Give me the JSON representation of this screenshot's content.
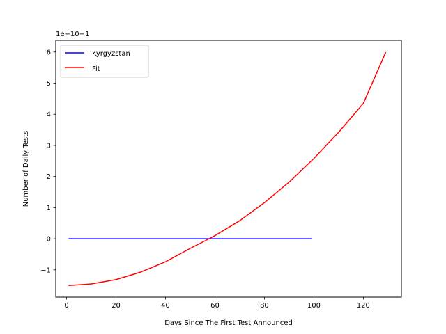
{
  "chart_data": {
    "type": "line",
    "title": "",
    "xlabel": "Days Since The First Test Announced",
    "ylabel": "Number of Daily Tests",
    "offset_label": "1e−10−1",
    "xlim": [
      -4.4,
      135.4
    ],
    "ylim": [
      -1.875,
      6.375
    ],
    "x_ticks": [
      0,
      20,
      40,
      60,
      80,
      100,
      120
    ],
    "x_tick_labels": [
      "0",
      "20",
      "40",
      "60",
      "80",
      "100",
      "120"
    ],
    "y_ticks": [
      -1,
      0,
      1,
      2,
      3,
      4,
      5,
      6
    ],
    "y_tick_labels": [
      "−1",
      "0",
      "1",
      "2",
      "3",
      "4",
      "5",
      "6"
    ],
    "grid": false,
    "legend_position": "top-left",
    "series": [
      {
        "name": "Kyrgyzstan",
        "color": "#0000ff",
        "x": [
          1,
          99
        ],
        "y": [
          0,
          0
        ]
      },
      {
        "name": "Fit",
        "color": "#ff0000",
        "x": [
          1,
          10,
          20,
          30,
          40,
          50,
          57.6,
          60,
          70,
          80,
          90,
          100,
          110,
          120,
          129
        ],
        "y": [
          -1.5,
          -1.45,
          -1.31,
          -1.07,
          -0.74,
          -0.31,
          0.0,
          0.1,
          0.58,
          1.16,
          1.82,
          2.58,
          3.42,
          4.35,
          5.98
        ]
      }
    ]
  }
}
